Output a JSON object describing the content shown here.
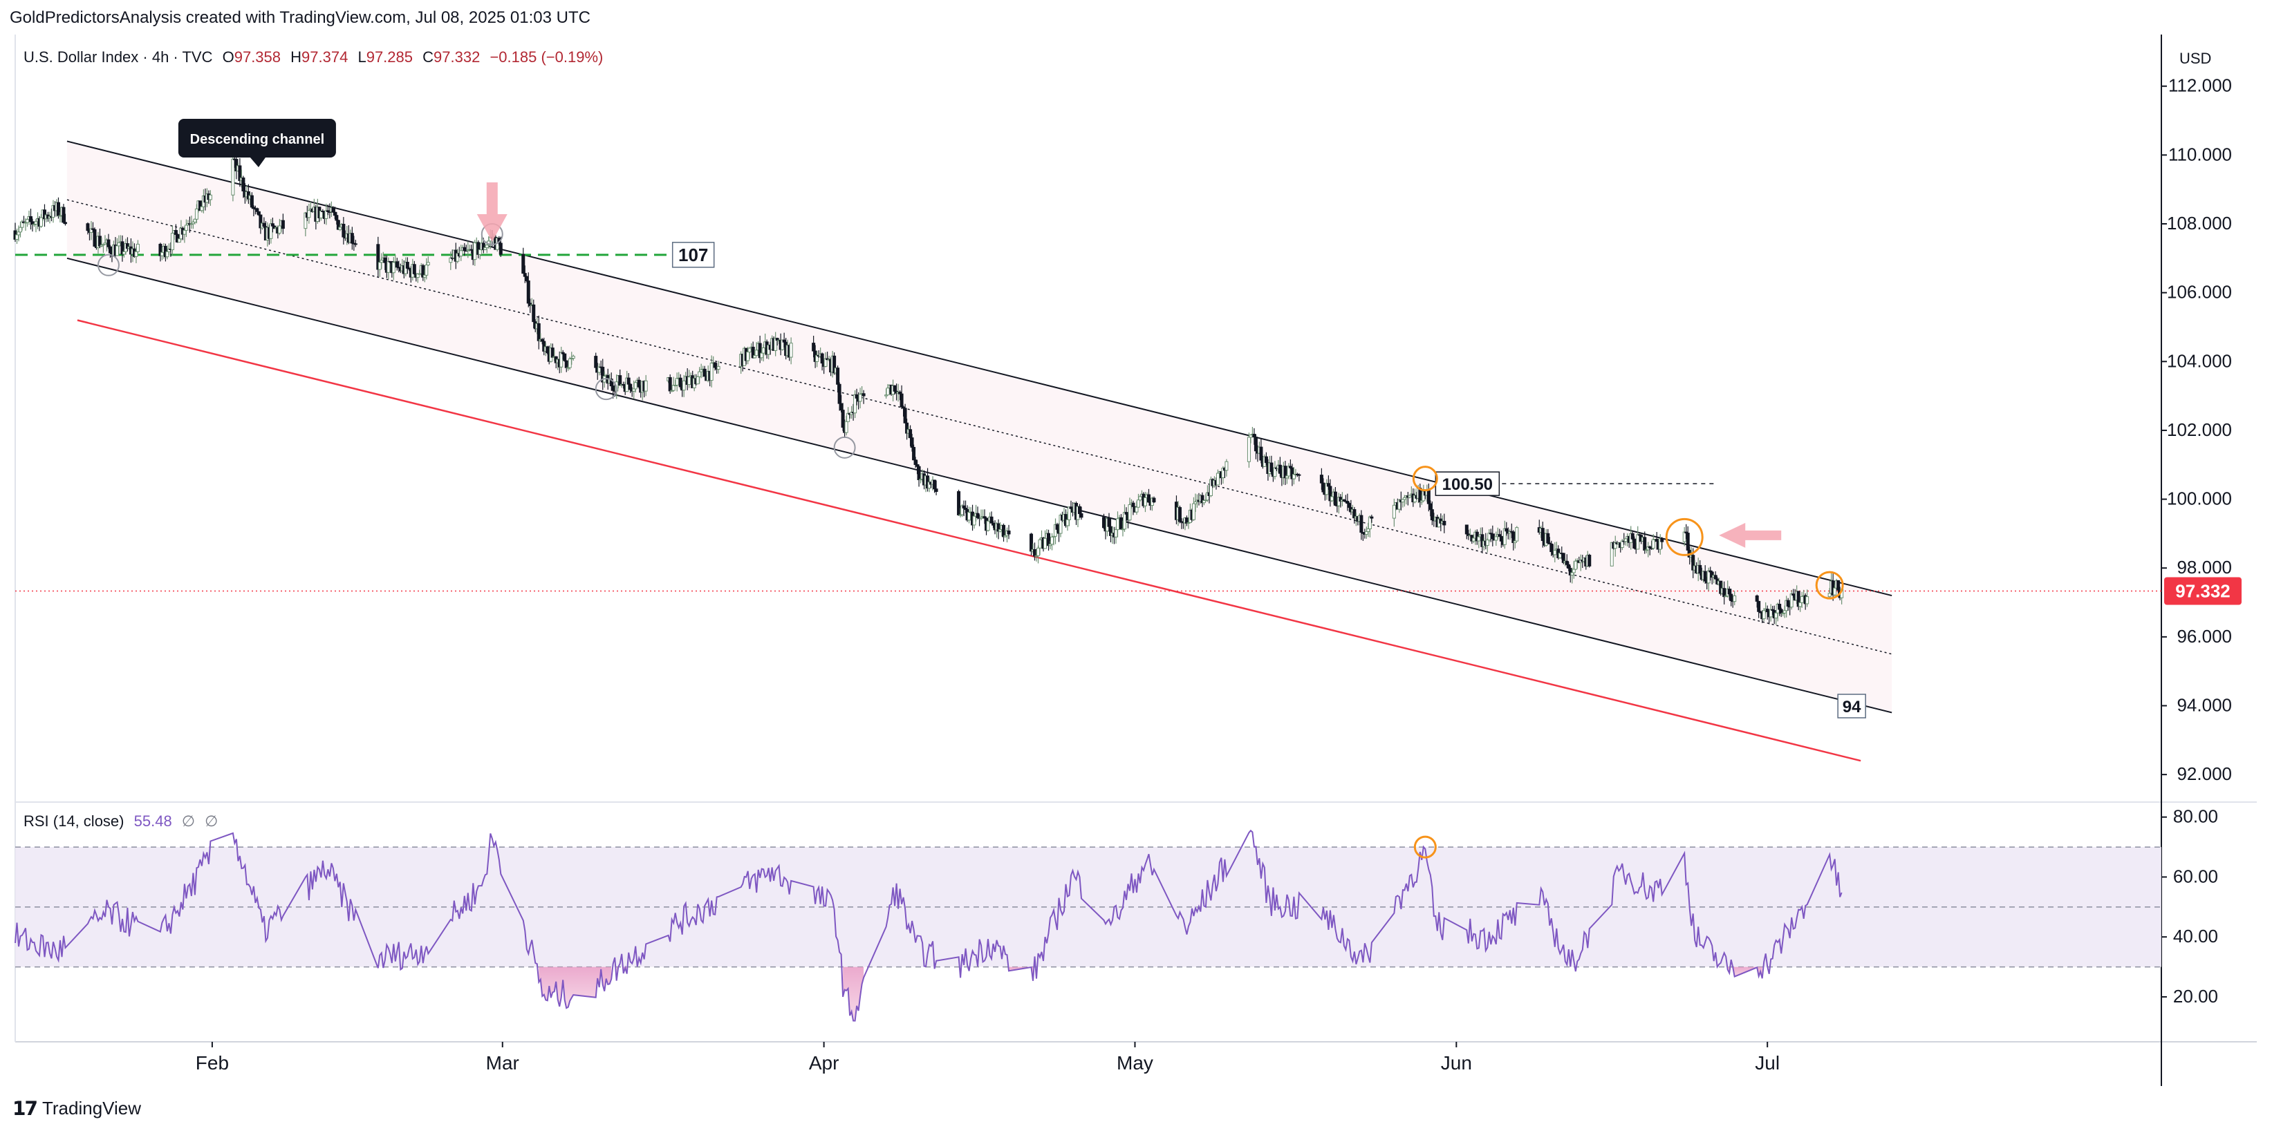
{
  "header": {
    "credit": "GoldPredictorsAnalysis created with TradingView.com, Jul 08, 2025 01:03 UTC"
  },
  "legend": {
    "symbol": "U.S. Dollar Index · 4h · TVC",
    "open_label": "O",
    "open": "97.358",
    "high_label": "H",
    "high": "97.374",
    "low_label": "L",
    "low": "97.285",
    "close_label": "C",
    "close": "97.332",
    "change": "−0.185 (−0.19%)"
  },
  "currency": "USD",
  "rsi_legend": {
    "label": "RSI (14, close)",
    "value": "55.48",
    "extra1": "∅",
    "extra2": "∅"
  },
  "footer": {
    "brand": "TradingView"
  },
  "colors": {
    "up": "#26a69a",
    "down": "#131722",
    "rsi_line": "#7e57c2",
    "rsi_band": "#ede7f6",
    "lower_rail": "#f23645",
    "support_dash": "#22a53a",
    "price_badge": "#f23645",
    "marker_orange": "#f7931a"
  },
  "chart_data": [
    {
      "type": "candlestick",
      "title": "U.S. Dollar Index · 4h · TVC",
      "y_axis": {
        "ylim": [
          91.2,
          113.5
        ],
        "ticks": [
          "112.000",
          "110.000",
          "108.000",
          "106.000",
          "104.000",
          "102.000",
          "100.000",
          "98.000",
          "96.000",
          "94.000",
          "92.000"
        ],
        "side": "right"
      },
      "x_axis": {
        "ticks": [
          "Feb",
          "Mar",
          "Apr",
          "May",
          "Jun",
          "Jul"
        ]
      },
      "last_price": "97.332",
      "anchors": [
        {
          "date": "2025-01-13",
          "close": 107.8
        },
        {
          "date": "2025-01-17",
          "close": 108.4
        },
        {
          "date": "2025-01-22",
          "close": 107.3
        },
        {
          "date": "2025-01-27",
          "close": 107.1
        },
        {
          "date": "2025-02-01",
          "close": 108.9
        },
        {
          "date": "2025-02-03",
          "close": 109.8
        },
        {
          "date": "2025-02-06",
          "close": 107.7
        },
        {
          "date": "2025-02-12",
          "close": 108.4
        },
        {
          "date": "2025-02-17",
          "close": 106.8
        },
        {
          "date": "2025-02-21",
          "close": 106.6
        },
        {
          "date": "2025-02-27",
          "close": 107.3
        },
        {
          "date": "2025-02-28",
          "close": 107.6
        },
        {
          "date": "2025-03-03",
          "close": 106.5
        },
        {
          "date": "2025-03-05",
          "close": 104.2
        },
        {
          "date": "2025-03-10",
          "close": 103.8
        },
        {
          "date": "2025-03-11",
          "close": 103.4
        },
        {
          "date": "2025-03-18",
          "close": 103.3
        },
        {
          "date": "2025-03-27",
          "close": 104.5
        },
        {
          "date": "2025-04-02",
          "close": 103.9
        },
        {
          "date": "2025-04-03",
          "close": 102.0
        },
        {
          "date": "2025-04-04",
          "close": 102.9
        },
        {
          "date": "2025-04-08",
          "close": 103.3
        },
        {
          "date": "2025-04-10",
          "close": 100.8
        },
        {
          "date": "2025-04-14",
          "close": 99.6
        },
        {
          "date": "2025-04-17",
          "close": 99.3
        },
        {
          "date": "2025-04-21",
          "close": 98.3
        },
        {
          "date": "2025-04-25",
          "close": 99.7
        },
        {
          "date": "2025-04-29",
          "close": 99.1
        },
        {
          "date": "2025-05-02",
          "close": 100.1
        },
        {
          "date": "2025-05-06",
          "close": 99.4
        },
        {
          "date": "2025-05-12",
          "close": 101.8
        },
        {
          "date": "2025-05-14",
          "close": 100.9
        },
        {
          "date": "2025-05-19",
          "close": 100.4
        },
        {
          "date": "2025-05-23",
          "close": 99.2
        },
        {
          "date": "2025-05-29",
          "close": 100.2
        },
        {
          "date": "2025-05-30",
          "close": 99.3
        },
        {
          "date": "2025-06-04",
          "close": 98.8
        },
        {
          "date": "2025-06-09",
          "close": 99.1
        },
        {
          "date": "2025-06-12",
          "close": 97.9
        },
        {
          "date": "2025-06-17",
          "close": 98.8
        },
        {
          "date": "2025-06-20",
          "close": 98.7
        },
        {
          "date": "2025-06-23",
          "close": 99.0
        },
        {
          "date": "2025-06-24",
          "close": 98.0
        },
        {
          "date": "2025-06-27",
          "close": 97.3
        },
        {
          "date": "2025-07-01",
          "close": 96.7
        },
        {
          "date": "2025-07-04",
          "close": 97.1
        },
        {
          "date": "2025-07-07",
          "close": 97.5
        },
        {
          "date": "2025-07-08",
          "close": 97.332
        }
      ],
      "annotations": {
        "callout": "Descending channel",
        "label_107": "107",
        "label_10050": "100.50",
        "label_94": "94"
      }
    },
    {
      "type": "line",
      "title": "RSI (14, close)",
      "y_axis": {
        "ylim": [
          5,
          85
        ],
        "ticks": [
          "80.00",
          "60.00",
          "40.00",
          "20.00"
        ],
        "bands": [
          30,
          50,
          70
        ]
      },
      "series": [
        {
          "name": "RSI (14, close)",
          "anchors": [
            {
              "date": "2025-01-13",
              "v": 40
            },
            {
              "date": "2025-01-17",
              "v": 35
            },
            {
              "date": "2025-01-22",
              "v": 48
            },
            {
              "date": "2025-01-27",
              "v": 40
            },
            {
              "date": "2025-02-01",
              "v": 68
            },
            {
              "date": "2025-02-03",
              "v": 75
            },
            {
              "date": "2025-02-06",
              "v": 42
            },
            {
              "date": "2025-02-12",
              "v": 63
            },
            {
              "date": "2025-02-17",
              "v": 33
            },
            {
              "date": "2025-02-21",
              "v": 35
            },
            {
              "date": "2025-02-27",
              "v": 57
            },
            {
              "date": "2025-02-28",
              "v": 73
            },
            {
              "date": "2025-03-03",
              "v": 45
            },
            {
              "date": "2025-03-05",
              "v": 20
            },
            {
              "date": "2025-03-10",
              "v": 22
            },
            {
              "date": "2025-03-11",
              "v": 27
            },
            {
              "date": "2025-03-18",
              "v": 45
            },
            {
              "date": "2025-03-27",
              "v": 62
            },
            {
              "date": "2025-04-02",
              "v": 50
            },
            {
              "date": "2025-04-03",
              "v": 20
            },
            {
              "date": "2025-04-04",
              "v": 14
            },
            {
              "date": "2025-04-08",
              "v": 56
            },
            {
              "date": "2025-04-10",
              "v": 36
            },
            {
              "date": "2025-04-14",
              "v": 30
            },
            {
              "date": "2025-04-17",
              "v": 38
            },
            {
              "date": "2025-04-21",
              "v": 26
            },
            {
              "date": "2025-04-25",
              "v": 60
            },
            {
              "date": "2025-04-29",
              "v": 46
            },
            {
              "date": "2025-05-02",
              "v": 65
            },
            {
              "date": "2025-05-06",
              "v": 43
            },
            {
              "date": "2025-05-12",
              "v": 77
            },
            {
              "date": "2025-05-14",
              "v": 52
            },
            {
              "date": "2025-05-19",
              "v": 48
            },
            {
              "date": "2025-05-23",
              "v": 32
            },
            {
              "date": "2025-05-29",
              "v": 68
            },
            {
              "date": "2025-05-30",
              "v": 44
            },
            {
              "date": "2025-06-04",
              "v": 40
            },
            {
              "date": "2025-06-09",
              "v": 53
            },
            {
              "date": "2025-06-12",
              "v": 30
            },
            {
              "date": "2025-06-17",
              "v": 62
            },
            {
              "date": "2025-06-20",
              "v": 55
            },
            {
              "date": "2025-06-23",
              "v": 66
            },
            {
              "date": "2025-06-24",
              "v": 40
            },
            {
              "date": "2025-06-27",
              "v": 30
            },
            {
              "date": "2025-07-01",
              "v": 31
            },
            {
              "date": "2025-07-04",
              "v": 47
            },
            {
              "date": "2025-07-07",
              "v": 67
            },
            {
              "date": "2025-07-08",
              "v": 55.48
            }
          ]
        }
      ]
    }
  ]
}
